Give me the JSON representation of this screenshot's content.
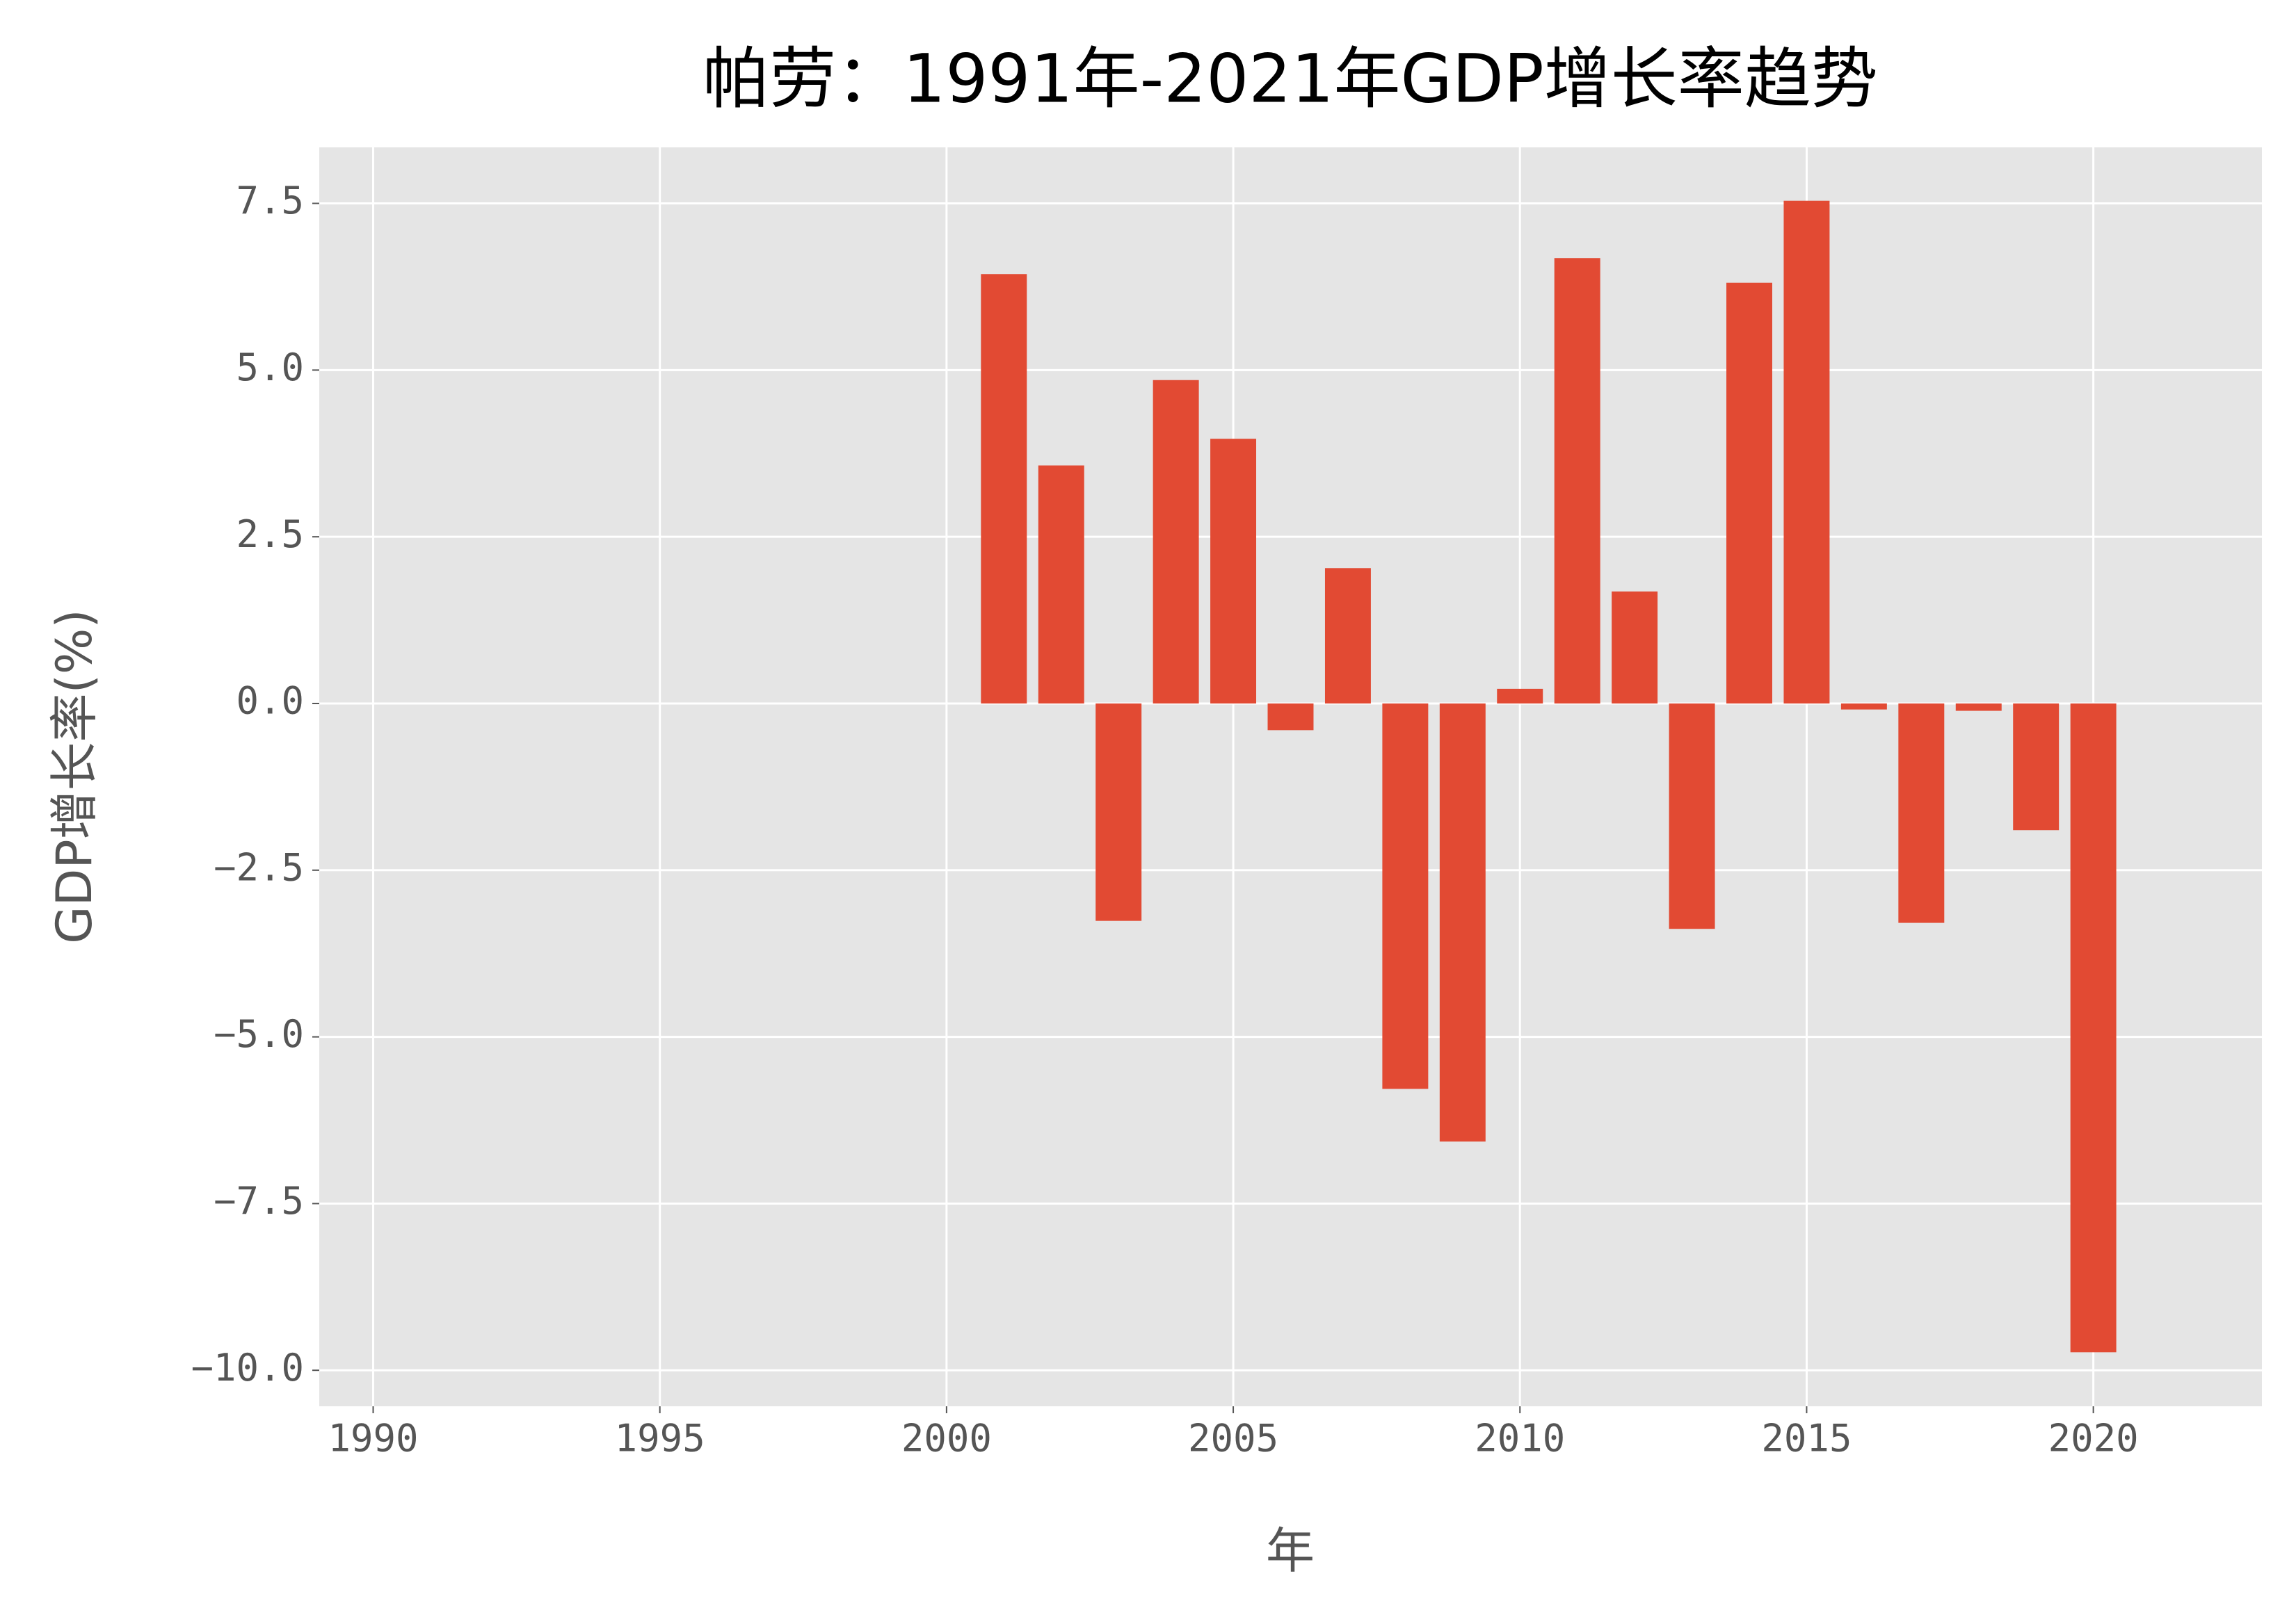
{
  "chart_data": {
    "type": "bar",
    "title": "帕劳：1991年-2021年GDP增长率趋势",
    "x_label": "年",
    "y_label": "GDP增长率(%)",
    "x": [
      1991,
      1992,
      1993,
      1994,
      1995,
      1996,
      1997,
      1998,
      1999,
      2000,
      2001,
      2002,
      2003,
      2004,
      2005,
      2006,
      2007,
      2008,
      2009,
      2010,
      2011,
      2012,
      2013,
      2014,
      2015,
      2016,
      2017,
      2018,
      2019,
      2020,
      2021
    ],
    "values": [
      null,
      null,
      null,
      null,
      null,
      null,
      null,
      null,
      null,
      null,
      6.44,
      3.57,
      -3.26,
      4.85,
      3.97,
      -0.4,
      2.03,
      -5.78,
      -6.57,
      0.22,
      6.68,
      1.68,
      -3.38,
      6.31,
      7.54,
      -0.09,
      -3.29,
      -0.11,
      -1.9,
      -9.73,
      null
    ],
    "color": "#e24a33",
    "xlim": [
      1989.06,
      2022.94
    ],
    "xticks": [
      1990,
      1995,
      2000,
      2005,
      2010,
      2015,
      2020
    ],
    "ylim": [
      -10.54,
      8.34
    ],
    "yticks": [
      {
        "value": -10,
        "label": "−10.0"
      },
      {
        "value": -7.5,
        "label": "−7.5"
      },
      {
        "value": -5,
        "label": "−5.0"
      },
      {
        "value": -2.5,
        "label": "−2.5"
      },
      {
        "value": 0,
        "label": "0.0"
      },
      2.5,
      {
        "value": 5,
        "label": "5.0"
      },
      7.5
    ],
    "grid": true
  }
}
